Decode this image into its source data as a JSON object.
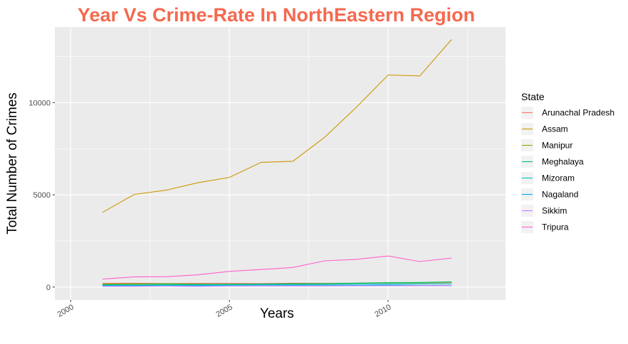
{
  "chart_data": {
    "type": "line",
    "title": "Year Vs Crime-Rate In NorthEastern Region",
    "xlabel": "Years",
    "ylabel": "Total Number of Crimes",
    "xlim": [
      1999.5,
      2013.7
    ],
    "ylim": [
      -700,
      14100
    ],
    "x_ticks": [
      2000,
      2005,
      2010
    ],
    "y_ticks": [
      0,
      5000,
      10000
    ],
    "grid": true,
    "legend_title": "State",
    "legend_position": "right",
    "title_color": "#f4694f",
    "panel_color": "#ebebeb",
    "x": [
      2001,
      2002,
      2003,
      2004,
      2005,
      2006,
      2007,
      2008,
      2009,
      2010,
      2011,
      2012
    ],
    "series": [
      {
        "name": "Arunachal Pradesh",
        "color": "#f8766d",
        "values": [
          200,
          210,
          190,
          200,
          200,
          190,
          210,
          200,
          210,
          220,
          230,
          240
        ]
      },
      {
        "name": "Assam",
        "color": "#cd9600",
        "values": [
          4050,
          5020,
          5250,
          5650,
          5950,
          6760,
          6820,
          8120,
          9750,
          11500,
          11450,
          13420
        ]
      },
      {
        "name": "Manipur",
        "color": "#7cae00",
        "values": [
          160,
          170,
          180,
          160,
          150,
          160,
          170,
          180,
          200,
          230,
          230,
          270
        ]
      },
      {
        "name": "Meghalaya",
        "color": "#00be67",
        "values": [
          130,
          140,
          150,
          140,
          150,
          160,
          180,
          190,
          210,
          240,
          250,
          280
        ]
      },
      {
        "name": "Mizoram",
        "color": "#00bfc4",
        "values": [
          90,
          90,
          100,
          100,
          110,
          120,
          120,
          130,
          150,
          160,
          170,
          170
        ]
      },
      {
        "name": "Nagaland",
        "color": "#00a9ff",
        "values": [
          60,
          70,
          60,
          70,
          60,
          70,
          80,
          80,
          90,
          100,
          90,
          80
        ]
      },
      {
        "name": "Sikkim",
        "color": "#c77cff",
        "values": [
          40,
          40,
          50,
          40,
          50,
          60,
          60,
          60,
          70,
          70,
          80,
          80
        ]
      },
      {
        "name": "Tripura",
        "color": "#ff61cc",
        "values": [
          430,
          550,
          560,
          660,
          850,
          950,
          1060,
          1420,
          1500,
          1680,
          1380,
          1570
        ]
      }
    ]
  }
}
